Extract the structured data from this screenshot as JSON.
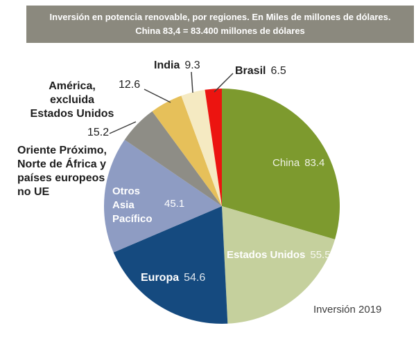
{
  "chart_data": {
    "type": "pie",
    "title": "Inversión en potencia renovable, por regiones. En Miles de millones de dólares.",
    "subtitle": "China 83,4 = 83.400 millones de dólares",
    "annotation": "Inversión 2019",
    "unit": "Miles de millones de dólares",
    "start_angle_deg": 0,
    "direction": "clockwise",
    "legend": "none",
    "series": [
      {
        "name": "China",
        "slug": "china",
        "value": 83.4,
        "color": "#7d9a2e"
      },
      {
        "name": "Estados Unidos",
        "slug": "estados-unidos",
        "value": 55.5,
        "color": "#c5d09d"
      },
      {
        "name": "Europa",
        "slug": "europa",
        "value": 54.6,
        "color": "#154a7f"
      },
      {
        "name": "Otros Asia Pacífico",
        "slug": "otros-asia-pacifico",
        "value": 45.1,
        "color": "#8e9cc3"
      },
      {
        "name": "Oriente Próximo, Norte de África y países europeos no UE",
        "slug": "oriente-proximo",
        "value": 15.2,
        "color": "#8e8d86"
      },
      {
        "name": "América, excluida Estados Unidos",
        "slug": "america-excluida-eeuu",
        "value": 12.6,
        "color": "#e6c05a"
      },
      {
        "name": "India",
        "slug": "india",
        "value": 9.3,
        "color": "#f5eac2"
      },
      {
        "name": "Brasil",
        "slug": "brasil",
        "value": 6.5,
        "color": "#ec1410"
      }
    ]
  },
  "banner": {
    "line1": "Inversión en potencia renovable, por regiones. En Miles de millones de dólares.",
    "line2": "China 83,4 = 83.400 millones de dólares"
  },
  "labels": {
    "india": {
      "name": "India",
      "value": "9.3"
    },
    "brasil": {
      "name": "Brasil",
      "value": "6.5"
    },
    "america": {
      "name": "América, excluida\nEstados Unidos",
      "value": "12.6"
    },
    "oriente": {
      "name": "Oriente Próximo,\nNorte de África y\npaíses europeos\nno UE",
      "value": "15.2"
    },
    "otros": {
      "name": "Otros\nAsia\nPacífico",
      "value": "45.1"
    },
    "europa": {
      "name": "Europa",
      "value": "54.6"
    },
    "china": {
      "name": "China",
      "value": "83.4"
    },
    "estados": {
      "name": "Estados Unidos",
      "value": "55.5"
    }
  },
  "footer": {
    "text": "Inversión 2019"
  },
  "colors": {
    "banner_bg": "#8b897e",
    "banner_text": "#ffffff",
    "outside_label_text": "#1c1c1c",
    "inside_label_text": "#ffffff",
    "leader_line": "#3c3c3c",
    "footer_text": "#3d3d3d",
    "background": "#ffffff"
  }
}
